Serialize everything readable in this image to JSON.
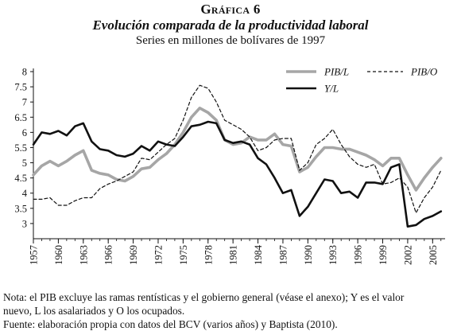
{
  "header": {
    "label": "Gráfica 6",
    "title": "Evolución comparada de la productividad laboral",
    "subtitle": "Series en millones de bolívares de 1997"
  },
  "notes": {
    "line1": "Nota: el PIB excluye las ramas rentísticas y el gobierno general (véase el anexo); Y es el valor",
    "line2": "nuevo, L los asalariados y O los ocupados.",
    "line3": "Fuente: elaboración propia con datos del BCV (varios años) y Baptista (2010)."
  },
  "chart_data": {
    "type": "line",
    "title": "Evolución comparada de la productividad laboral",
    "subtitle": "Series en millones de bolívares de 1997",
    "xlabel": "",
    "ylabel": "",
    "x": [
      1957,
      1958,
      1959,
      1960,
      1961,
      1962,
      1963,
      1964,
      1965,
      1966,
      1967,
      1968,
      1969,
      1970,
      1971,
      1972,
      1973,
      1974,
      1975,
      1976,
      1977,
      1978,
      1979,
      1980,
      1981,
      1982,
      1983,
      1984,
      1985,
      1986,
      1987,
      1988,
      1989,
      1990,
      1991,
      1992,
      1993,
      1994,
      1995,
      1996,
      1997,
      1998,
      1999,
      2000,
      2001,
      2002,
      2003,
      2004,
      2005,
      2006
    ],
    "xticks": [
      "1957",
      "1960",
      "1963",
      "1966",
      "1969",
      "1972",
      "1975",
      "1978",
      "1981",
      "1984",
      "1987",
      "1990",
      "1993",
      "1996",
      "1999",
      "2002",
      "2005"
    ],
    "yticks": [
      "3",
      "3.5",
      "4",
      "4.5",
      "5",
      "5.5",
      "6",
      "6.5",
      "7",
      "7.5",
      "8"
    ],
    "ylim": [
      2.5,
      8
    ],
    "xlim": [
      1957,
      2006.5
    ],
    "grid": false,
    "legend_position": "top-right",
    "series": [
      {
        "name": "PIB/L",
        "style": "thick-gray",
        "color": "#a6a6a6",
        "values": [
          4.6,
          4.9,
          5.05,
          4.9,
          5.05,
          5.25,
          5.4,
          4.75,
          4.65,
          4.6,
          4.45,
          4.4,
          4.55,
          4.8,
          4.85,
          5.1,
          5.3,
          5.6,
          6.0,
          6.5,
          6.8,
          6.65,
          6.4,
          5.75,
          5.6,
          5.65,
          5.85,
          5.75,
          5.75,
          5.95,
          5.6,
          5.55,
          4.7,
          4.85,
          5.2,
          5.5,
          5.5,
          5.45,
          5.45,
          5.35,
          5.25,
          5.1,
          4.9,
          5.15,
          5.15,
          4.6,
          4.1,
          4.5,
          4.85,
          5.15
        ]
      },
      {
        "name": "PIB/O",
        "style": "dashed-black",
        "color": "#111111",
        "values": [
          3.8,
          3.8,
          3.85,
          3.6,
          3.6,
          3.75,
          3.85,
          3.85,
          4.15,
          4.3,
          4.4,
          4.55,
          4.7,
          5.15,
          5.1,
          5.35,
          5.6,
          5.8,
          6.4,
          7.15,
          7.55,
          7.45,
          7.0,
          6.4,
          6.25,
          6.1,
          5.85,
          5.4,
          5.5,
          5.75,
          5.8,
          5.8,
          4.75,
          5.0,
          5.6,
          5.8,
          6.1,
          5.6,
          5.2,
          4.95,
          4.85,
          4.95,
          4.3,
          4.35,
          4.5,
          4.2,
          3.35,
          3.85,
          4.2,
          4.75
        ]
      },
      {
        "name": "Y/L",
        "style": "thick-black",
        "color": "#111111",
        "values": [
          5.6,
          6.0,
          5.95,
          6.05,
          5.9,
          6.2,
          6.3,
          5.7,
          5.45,
          5.4,
          5.25,
          5.2,
          5.3,
          5.55,
          5.4,
          5.7,
          5.6,
          5.55,
          5.85,
          6.2,
          6.25,
          6.35,
          6.3,
          5.75,
          5.65,
          5.7,
          5.6,
          5.15,
          4.95,
          4.5,
          4.0,
          4.1,
          3.25,
          3.55,
          4.0,
          4.45,
          4.4,
          4.0,
          4.05,
          3.85,
          4.35,
          4.35,
          4.3,
          4.85,
          4.95,
          2.9,
          2.95,
          3.15,
          3.25,
          3.4
        ]
      }
    ]
  }
}
